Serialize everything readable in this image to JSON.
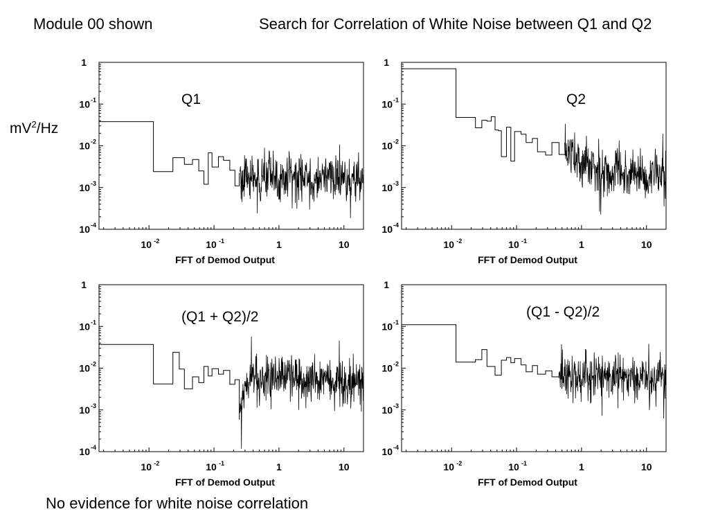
{
  "header": {
    "module_label": "Module 00 shown",
    "title": "Search for Correlation of White Noise between Q1 and Q2"
  },
  "y_unit": {
    "base": "mV",
    "sup": "2",
    "rest": "/Hz"
  },
  "footer": {
    "conclusion": "No evidence for white noise correlation"
  },
  "chart_data": [
    {
      "type": "line",
      "label": "Q1",
      "xlabel": "FFT of Demod Output",
      "xscale": "log",
      "yscale": "log",
      "xlim": [
        0.0017,
        20
      ],
      "ylim": [
        0.0001,
        1
      ],
      "x_ticks": [
        {
          "value": 0.01,
          "base": "10",
          "exp": "-2"
        },
        {
          "value": 0.1,
          "base": "10",
          "exp": "-1"
        },
        {
          "value": 1,
          "base": "1",
          "exp": ""
        },
        {
          "value": 10,
          "base": "10",
          "exp": ""
        }
      ],
      "y_ticks": [
        {
          "value": 1,
          "base": "1",
          "exp": ""
        },
        {
          "value": 0.1,
          "base": "10",
          "exp": "-1"
        },
        {
          "value": 0.01,
          "base": "10",
          "exp": "-2"
        },
        {
          "value": 0.001,
          "base": "10",
          "exp": "-3"
        },
        {
          "value": 0.0001,
          "base": "10",
          "exp": "-4"
        }
      ],
      "series": [
        {
          "x": [
            0.0017,
            0.0117,
            0.0175,
            0.0233,
            0.035,
            0.0467,
            0.0583,
            0.07,
            0.0817,
            0.0933,
            0.117,
            0.14,
            0.175,
            0.21,
            0.245,
            0.3,
            0.4,
            0.5,
            0.7,
            1.0,
            1.5,
            2.0,
            3.0,
            5.0,
            7.0,
            10.0,
            14.0,
            20.0
          ],
          "y": [
            0.038,
            0.0024,
            0.0024,
            0.0052,
            0.0036,
            0.0047,
            0.0025,
            0.0012,
            0.0068,
            0.0031,
            0.0055,
            0.0045,
            0.0026,
            0.0011,
            0.0022,
            0.0014,
            0.0022,
            0.0011,
            0.0021,
            0.0013,
            0.0021,
            0.0017,
            0.0014,
            0.0022,
            0.0016,
            0.0019,
            0.0016,
            0.0019
          ],
          "noise_floor_from_x": 0.25,
          "noise_spread_decades": 0.8
        }
      ]
    },
    {
      "type": "line",
      "label": "Q2",
      "xlabel": "FFT of Demod Output",
      "xscale": "log",
      "yscale": "log",
      "xlim": [
        0.0017,
        20
      ],
      "ylim": [
        0.0001,
        1
      ],
      "x_ticks": [
        {
          "value": 0.01,
          "base": "10",
          "exp": "-2"
        },
        {
          "value": 0.1,
          "base": "10",
          "exp": "-1"
        },
        {
          "value": 1,
          "base": "1",
          "exp": ""
        },
        {
          "value": 10,
          "base": "10",
          "exp": ""
        }
      ],
      "y_ticks": [
        {
          "value": 1,
          "base": "1",
          "exp": ""
        },
        {
          "value": 0.1,
          "base": "10",
          "exp": "-1"
        },
        {
          "value": 0.01,
          "base": "10",
          "exp": "-2"
        },
        {
          "value": 0.001,
          "base": "10",
          "exp": "-3"
        },
        {
          "value": 0.0001,
          "base": "10",
          "exp": "-4"
        }
      ],
      "series": [
        {
          "x": [
            0.0017,
            0.0117,
            0.0175,
            0.0233,
            0.0292,
            0.035,
            0.0408,
            0.0467,
            0.0525,
            0.0583,
            0.07,
            0.0817,
            0.0933,
            0.117,
            0.14,
            0.175,
            0.21,
            0.28,
            0.35,
            0.45,
            0.6,
            0.8,
            1.0,
            1.5,
            2.0,
            3.0,
            5.0,
            7.0,
            10.0,
            14.0,
            20.0
          ],
          "y": [
            0.7,
            0.048,
            0.048,
            0.027,
            0.041,
            0.039,
            0.05,
            0.024,
            0.023,
            0.0055,
            0.028,
            0.0043,
            0.022,
            0.019,
            0.012,
            0.015,
            0.0072,
            0.006,
            0.012,
            0.0062,
            0.0078,
            0.0061,
            0.0041,
            0.0033,
            0.0028,
            0.0025,
            0.0021,
            0.0024,
            0.0019,
            0.0021,
            0.0024
          ],
          "noise_floor_from_x": 0.55,
          "noise_spread_decades": 0.85
        }
      ]
    },
    {
      "type": "line",
      "label": "(Q1 + Q2)/2",
      "xlabel": "FFT of Demod Output",
      "xscale": "log",
      "yscale": "log",
      "xlim": [
        0.0017,
        20
      ],
      "ylim": [
        0.0001,
        1
      ],
      "x_ticks": [
        {
          "value": 0.01,
          "base": "10",
          "exp": "-2"
        },
        {
          "value": 0.1,
          "base": "10",
          "exp": "-1"
        },
        {
          "value": 1,
          "base": "1",
          "exp": ""
        },
        {
          "value": 10,
          "base": "10",
          "exp": ""
        }
      ],
      "y_ticks": [
        {
          "value": 1,
          "base": "1",
          "exp": ""
        },
        {
          "value": 0.1,
          "base": "10",
          "exp": "-1"
        },
        {
          "value": 0.01,
          "base": "10",
          "exp": "-2"
        },
        {
          "value": 0.001,
          "base": "10",
          "exp": "-3"
        },
        {
          "value": 0.0001,
          "base": "10",
          "exp": "-4"
        }
      ],
      "series": [
        {
          "x": [
            0.0017,
            0.0117,
            0.0175,
            0.0233,
            0.0292,
            0.035,
            0.0467,
            0.0583,
            0.07,
            0.0817,
            0.0933,
            0.117,
            0.14,
            0.175,
            0.21,
            0.245,
            0.3,
            0.4,
            0.5,
            0.7,
            1.0,
            1.5,
            2.0,
            3.0,
            5.0,
            7.0,
            10.0,
            14.0,
            20.0
          ],
          "y": [
            0.037,
            0.0042,
            0.0042,
            0.024,
            0.0095,
            0.0032,
            0.0062,
            0.0045,
            0.011,
            0.0065,
            0.0097,
            0.0072,
            0.0088,
            0.0041,
            0.0053,
            0.0006,
            0.0044,
            0.0075,
            0.0047,
            0.0065,
            0.0054,
            0.0075,
            0.0061,
            0.0055,
            0.0048,
            0.0063,
            0.0051,
            0.0058,
            0.0052
          ],
          "noise_floor_from_x": 0.25,
          "noise_spread_decades": 0.8
        }
      ]
    },
    {
      "type": "line",
      "label": "(Q1 - Q2)/2",
      "xlabel": "FFT of Demod Output",
      "xscale": "log",
      "yscale": "log",
      "xlim": [
        0.0017,
        20
      ],
      "ylim": [
        0.0001,
        1
      ],
      "x_ticks": [
        {
          "value": 0.01,
          "base": "10",
          "exp": "-2"
        },
        {
          "value": 0.1,
          "base": "10",
          "exp": "-1"
        },
        {
          "value": 1,
          "base": "1",
          "exp": ""
        },
        {
          "value": 10,
          "base": "10",
          "exp": ""
        }
      ],
      "y_ticks": [
        {
          "value": 1,
          "base": "1",
          "exp": ""
        },
        {
          "value": 0.1,
          "base": "10",
          "exp": "-1"
        },
        {
          "value": 0.01,
          "base": "10",
          "exp": "-2"
        },
        {
          "value": 0.001,
          "base": "10",
          "exp": "-3"
        },
        {
          "value": 0.0001,
          "base": "10",
          "exp": "-4"
        }
      ],
      "series": [
        {
          "x": [
            0.0017,
            0.0117,
            0.0175,
            0.0233,
            0.0292,
            0.035,
            0.0467,
            0.0583,
            0.07,
            0.0817,
            0.0933,
            0.117,
            0.14,
            0.175,
            0.21,
            0.28,
            0.35,
            0.45,
            0.6,
            0.8,
            1.0,
            1.5,
            2.0,
            3.0,
            5.0,
            7.0,
            10.0,
            14.0,
            20.0
          ],
          "y": [
            0.11,
            0.014,
            0.014,
            0.016,
            0.028,
            0.011,
            0.0068,
            0.0155,
            0.018,
            0.0135,
            0.017,
            0.012,
            0.0082,
            0.0115,
            0.0072,
            0.0086,
            0.0062,
            0.0079,
            0.0071,
            0.0061,
            0.0073,
            0.0064,
            0.0067,
            0.0071,
            0.0068,
            0.0065,
            0.0069,
            0.0068,
            0.0066
          ],
          "noise_floor_from_x": 0.45,
          "noise_spread_decades": 0.85
        }
      ]
    }
  ]
}
